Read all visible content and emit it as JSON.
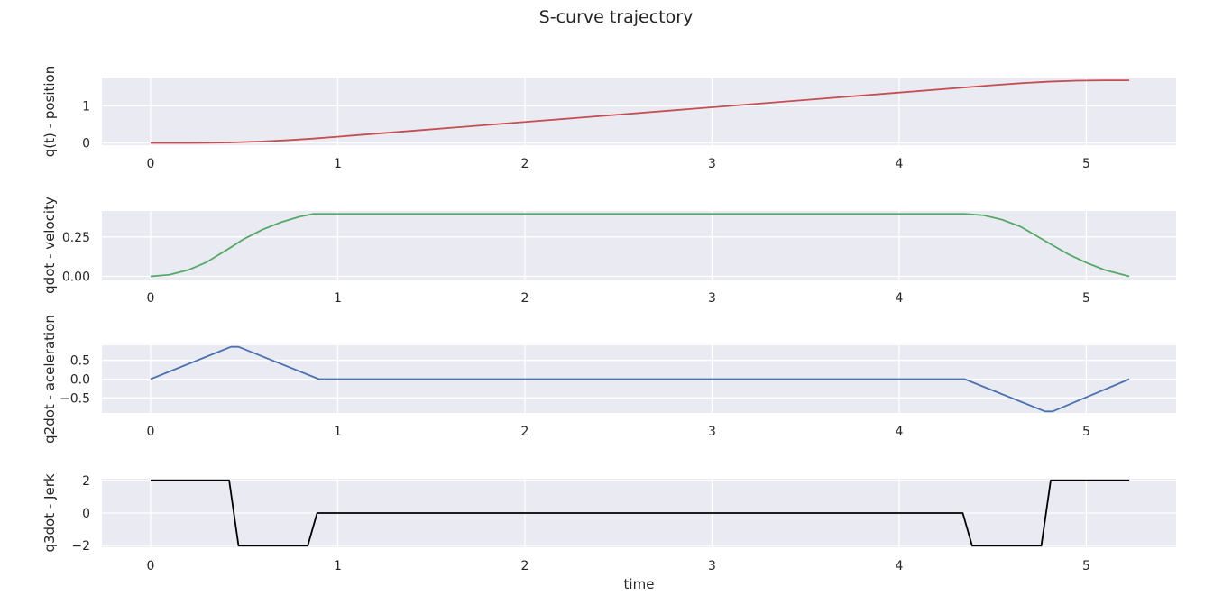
{
  "figure": {
    "title": "S-curve trajectory"
  },
  "chart_data": [
    {
      "type": "line",
      "title": "",
      "xlabel": "",
      "ylabel": "q(t) - position",
      "xlim": [
        -0.26,
        5.48
      ],
      "ylim": [
        -0.06,
        1.76
      ],
      "xticks": [
        0,
        1,
        2,
        3,
        4,
        5
      ],
      "xticklabels": [
        "0",
        "1",
        "2",
        "3",
        "4",
        "5"
      ],
      "yticks": [
        0,
        1
      ],
      "yticklabels": [
        "0",
        "1"
      ],
      "grid": true,
      "series": [
        {
          "color": "#c44e52",
          "x": [
            0,
            0.1,
            0.2,
            0.3,
            0.43,
            0.6,
            0.75,
            0.87,
            1.0,
            1.5,
            2.0,
            2.5,
            3.0,
            3.5,
            4.0,
            4.35,
            4.5,
            4.65,
            4.8,
            4.95,
            5.1,
            5.23
          ],
          "y": [
            0,
            0.0002,
            0.0013,
            0.0045,
            0.0129,
            0.04,
            0.078,
            0.117,
            0.168,
            0.366,
            0.564,
            0.762,
            0.959,
            1.157,
            1.355,
            1.494,
            1.553,
            1.607,
            1.649,
            1.675,
            1.684,
            1.685
          ]
        }
      ]
    },
    {
      "type": "line",
      "title": "",
      "xlabel": "",
      "ylabel": "qdot - velocity",
      "xlim": [
        -0.26,
        5.48
      ],
      "ylim": [
        -0.02,
        0.415
      ],
      "xticks": [
        0,
        1,
        2,
        3,
        4,
        5
      ],
      "xticklabels": [
        "0",
        "1",
        "2",
        "3",
        "4",
        "5"
      ],
      "yticks": [
        0.0,
        0.25
      ],
      "yticklabels": [
        "0.00",
        "0.25"
      ],
      "grid": true,
      "series": [
        {
          "color": "#55a868",
          "x": [
            0,
            0.1,
            0.2,
            0.3,
            0.43,
            0.5,
            0.6,
            0.7,
            0.8,
            0.87,
            1.0,
            2.0,
            3.0,
            4.0,
            4.35,
            4.45,
            4.55,
            4.65,
            4.8,
            4.9,
            5.0,
            5.1,
            5.23
          ],
          "y": [
            0,
            0.01,
            0.04,
            0.09,
            0.185,
            0.238,
            0.298,
            0.345,
            0.38,
            0.396,
            0.396,
            0.396,
            0.396,
            0.396,
            0.396,
            0.388,
            0.36,
            0.315,
            0.211,
            0.143,
            0.087,
            0.04,
            0
          ]
        }
      ]
    },
    {
      "type": "line",
      "title": "",
      "xlabel": "",
      "ylabel": "q2dot - aceleration",
      "xlim": [
        -0.26,
        5.48
      ],
      "ylim": [
        -0.9,
        0.9
      ],
      "xticks": [
        0,
        1,
        2,
        3,
        4,
        5
      ],
      "xticklabels": [
        "0",
        "1",
        "2",
        "3",
        "4",
        "5"
      ],
      "yticks": [
        -0.5,
        0.0,
        0.5
      ],
      "yticklabels": [
        "−0.5",
        "0.0",
        "0.5"
      ],
      "grid": true,
      "series": [
        {
          "color": "#4c72b0",
          "x": [
            0,
            0.43,
            0.47,
            0.9,
            4.35,
            4.78,
            4.82,
            5.23
          ],
          "y": [
            0,
            0.86,
            0.86,
            0,
            0,
            -0.86,
            -0.86,
            0
          ]
        }
      ]
    },
    {
      "type": "line",
      "title": "",
      "xlabel": "time",
      "ylabel": "q3dot - Jerk",
      "xlim": [
        -0.26,
        5.48
      ],
      "ylim": [
        -2.1,
        2.1
      ],
      "xticks": [
        0,
        1,
        2,
        3,
        4,
        5
      ],
      "xticklabels": [
        "0",
        "1",
        "2",
        "3",
        "4",
        "5"
      ],
      "yticks": [
        -2,
        0,
        2
      ],
      "yticklabels": [
        "−2",
        "0",
        "2"
      ],
      "grid": true,
      "series": [
        {
          "color": "#000000",
          "x": [
            0,
            0.42,
            0.47,
            0.84,
            0.89,
            4.34,
            4.39,
            4.76,
            4.81,
            5.23
          ],
          "y": [
            2,
            2,
            -2,
            -2,
            0,
            0,
            -2,
            -2,
            2,
            2
          ]
        }
      ]
    }
  ]
}
